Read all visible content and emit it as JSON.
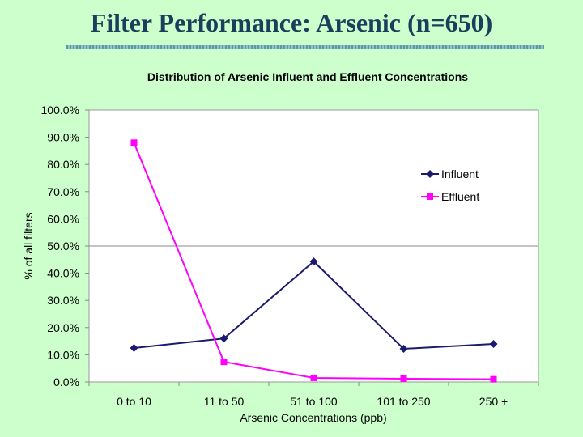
{
  "slide": {
    "title": "Filter Performance: Arsenic (n=650)",
    "background": "#ccffcc",
    "title_color": "#1a3f5c"
  },
  "chart_data": {
    "type": "line",
    "title": "Distribution of Arsenic Influent and Effluent Concentrations",
    "xlabel": "Arsenic Concentrations (ppb)",
    "ylabel": "% of all filters",
    "categories": [
      "0 to 10",
      "11 to 50",
      "51 to 100",
      "101 to 250",
      "250 +"
    ],
    "ylim": [
      0,
      100
    ],
    "yticks": [
      0,
      10,
      20,
      30,
      40,
      50,
      60,
      70,
      80,
      90,
      100
    ],
    "ytick_labels": [
      "0.0%",
      "10.0%",
      "20.0%",
      "30.0%",
      "40.0%",
      "50.0%",
      "60.0%",
      "70.0%",
      "80.0%",
      "90.0%",
      "100.0%"
    ],
    "grid": "horizontal at 50%",
    "legend_position": "right",
    "series": [
      {
        "name": "Influent",
        "values": [
          12.5,
          16.0,
          44.3,
          12.2,
          14.0
        ],
        "color": "#1a1a6e",
        "marker": "diamond"
      },
      {
        "name": "Effluent",
        "values": [
          88.0,
          7.4,
          1.5,
          1.2,
          1.0
        ],
        "color": "#ff00ff",
        "marker": "square"
      }
    ]
  }
}
